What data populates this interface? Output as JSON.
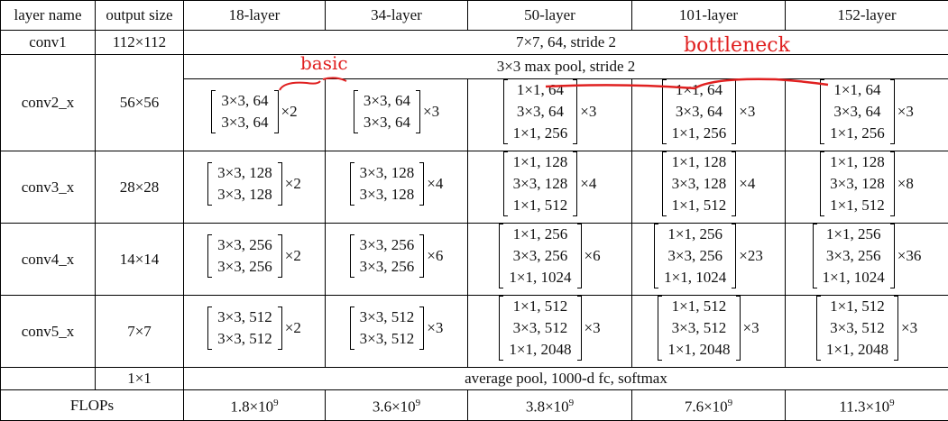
{
  "header": [
    "layer name",
    "output size",
    "18-layer",
    "34-layer",
    "50-layer",
    "101-layer",
    "152-layer"
  ],
  "conv1": {
    "name": "conv1",
    "output": "112×112",
    "spec": "7×7, 64, stride 2"
  },
  "stages": [
    {
      "name": "conv2_x",
      "output": "56×56",
      "pool": "3×3 max pool, stride 2",
      "blocks": [
        {
          "lines": [
            "3×3, 64",
            "3×3, 64"
          ],
          "times": "×2"
        },
        {
          "lines": [
            "3×3, 64",
            "3×3, 64"
          ],
          "times": "×3"
        },
        {
          "lines": [
            "1×1, 64",
            "3×3, 64",
            "1×1, 256"
          ],
          "times": "×3"
        },
        {
          "lines": [
            "1×1, 64",
            "3×3, 64",
            "1×1, 256"
          ],
          "times": "×3"
        },
        {
          "lines": [
            "1×1, 64",
            "3×3, 64",
            "1×1, 256"
          ],
          "times": "×3"
        }
      ]
    },
    {
      "name": "conv3_x",
      "output": "28×28",
      "blocks": [
        {
          "lines": [
            "3×3, 128",
            "3×3, 128"
          ],
          "times": "×2"
        },
        {
          "lines": [
            "3×3, 128",
            "3×3, 128"
          ],
          "times": "×4"
        },
        {
          "lines": [
            "1×1, 128",
            "3×3, 128",
            "1×1, 512"
          ],
          "times": "×4"
        },
        {
          "lines": [
            "1×1, 128",
            "3×3, 128",
            "1×1, 512"
          ],
          "times": "×4"
        },
        {
          "lines": [
            "1×1, 128",
            "3×3, 128",
            "1×1, 512"
          ],
          "times": "×8"
        }
      ]
    },
    {
      "name": "conv4_x",
      "output": "14×14",
      "blocks": [
        {
          "lines": [
            "3×3, 256",
            "3×3, 256"
          ],
          "times": "×2"
        },
        {
          "lines": [
            "3×3, 256",
            "3×3, 256"
          ],
          "times": "×6"
        },
        {
          "lines": [
            "1×1, 256",
            "3×3, 256",
            "1×1, 1024"
          ],
          "times": "×6"
        },
        {
          "lines": [
            "1×1, 256",
            "3×3, 256",
            "1×1, 1024"
          ],
          "times": "×23"
        },
        {
          "lines": [
            "1×1, 256",
            "3×3, 256",
            "1×1, 1024"
          ],
          "times": "×36"
        }
      ]
    },
    {
      "name": "conv5_x",
      "output": "7×7",
      "blocks": [
        {
          "lines": [
            "3×3, 512",
            "3×3, 512"
          ],
          "times": "×2"
        },
        {
          "lines": [
            "3×3, 512",
            "3×3, 512"
          ],
          "times": "×3"
        },
        {
          "lines": [
            "1×1, 512",
            "3×3, 512",
            "1×1, 2048"
          ],
          "times": "×3"
        },
        {
          "lines": [
            "1×1, 512",
            "3×3, 512",
            "1×1, 2048"
          ],
          "times": "×3"
        },
        {
          "lines": [
            "1×1, 512",
            "3×3, 512",
            "1×1, 2048"
          ],
          "times": "×3"
        }
      ]
    }
  ],
  "final": {
    "output": "1×1",
    "spec": "average pool, 1000-d fc, softmax"
  },
  "flops": {
    "name": "FLOPs",
    "values": [
      {
        "base": "1.8×10",
        "exp": "9"
      },
      {
        "base": "3.6×10",
        "exp": "9"
      },
      {
        "base": "3.8×10",
        "exp": "9"
      },
      {
        "base": "7.6×10",
        "exp": "9"
      },
      {
        "base": "11.3×10",
        "exp": "9"
      }
    ]
  },
  "annotations": {
    "basic": "basic",
    "bottleneck": "bottleneck"
  }
}
